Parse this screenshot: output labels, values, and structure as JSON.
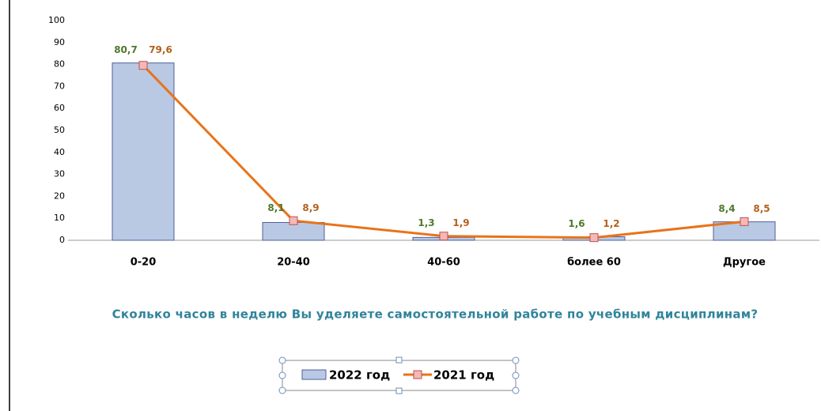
{
  "chart_data": {
    "type": "bar-line",
    "title": "Сколько часов в неделю Вы уделяете самостоятельной работе по учебным дисциплинам?",
    "categories": [
      "0-20",
      "20-40",
      "40-60",
      "более 60",
      "Другое"
    ],
    "series": [
      {
        "name": "2022 год",
        "type": "bar",
        "color": "#b9c9e4",
        "label_color": "#4e7a2a",
        "values": [
          80.7,
          8.1,
          1.3,
          1.6,
          8.4
        ],
        "value_labels": [
          "80,7",
          "8,1",
          "1,3",
          "1,6",
          "8,4"
        ]
      },
      {
        "name": "2021 год",
        "type": "line",
        "color": "#e8731a",
        "label_color": "#b5601a",
        "values": [
          79.6,
          8.9,
          1.9,
          1.2,
          8.5
        ],
        "value_labels": [
          "79,6",
          "8,9",
          "1,9",
          "1,2",
          "8,5"
        ]
      }
    ],
    "ylim": [
      0,
      100
    ],
    "yticks": [
      0,
      10,
      20,
      30,
      40,
      50,
      60,
      70,
      80,
      90,
      100
    ],
    "grid": false,
    "legend": "bottom"
  }
}
